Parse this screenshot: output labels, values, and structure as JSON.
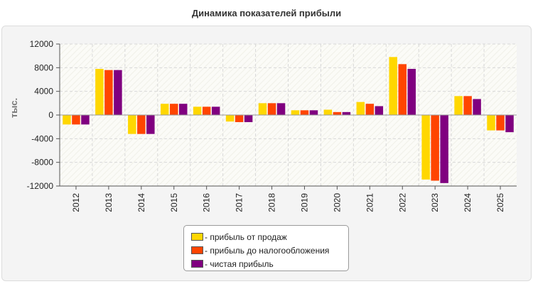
{
  "chart_data": {
    "type": "bar",
    "title": "Динамика показателей прибыли",
    "ylabel": "тыс.",
    "xlabel": "",
    "ylim": [
      -12000,
      12000
    ],
    "yticks": [
      12000,
      8000,
      4000,
      0,
      -4000,
      -8000,
      -12000
    ],
    "grid": true,
    "legend_position": "bottom-center",
    "categories": [
      "2012",
      "2013",
      "2014",
      "2015",
      "2016",
      "2017",
      "2018",
      "2019",
      "2020",
      "2021",
      "2022",
      "2023",
      "2024",
      "2025"
    ],
    "series": [
      {
        "name": "прибыль от продаж",
        "color": "#ffd700",
        "values": [
          -1600,
          7800,
          -3200,
          1900,
          1400,
          -1100,
          2000,
          800,
          900,
          2200,
          9800,
          -10900,
          3200,
          -2600
        ]
      },
      {
        "name": "прибыль до налогообложения",
        "color": "#ff4500",
        "values": [
          -1600,
          7600,
          -3200,
          1900,
          1400,
          -1200,
          2000,
          800,
          500,
          1900,
          8600,
          -11100,
          3200,
          -2600
        ]
      },
      {
        "name": "чистая прибыль",
        "color": "#800080",
        "values": [
          -1600,
          7600,
          -3200,
          1900,
          1400,
          -1200,
          2000,
          800,
          500,
          1500,
          7800,
          -11500,
          2700,
          -2900
        ]
      }
    ]
  },
  "legend": {
    "items": [
      {
        "label": "- прибыль от продаж",
        "color": "#ffd700"
      },
      {
        "label": "- прибыль до налогообложения",
        "color": "#ff4500"
      },
      {
        "label": "- чистая прибыль",
        "color": "#800080"
      }
    ]
  }
}
